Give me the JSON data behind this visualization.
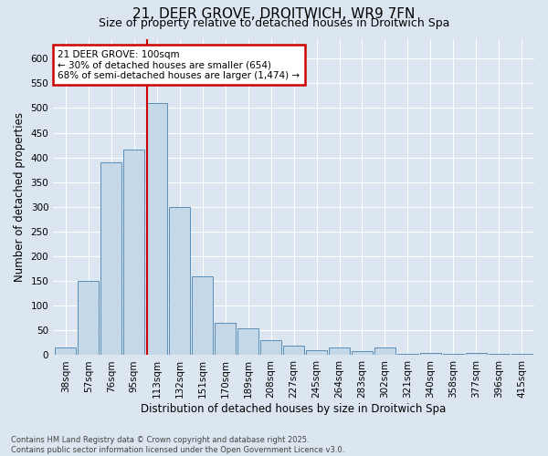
{
  "title_line1": "21, DEER GROVE, DROITWICH, WR9 7FN",
  "title_line2": "Size of property relative to detached houses in Droitwich Spa",
  "xlabel": "Distribution of detached houses by size in Droitwich Spa",
  "ylabel": "Number of detached properties",
  "categories": [
    "38sqm",
    "57sqm",
    "76sqm",
    "95sqm",
    "113sqm",
    "132sqm",
    "151sqm",
    "170sqm",
    "189sqm",
    "208sqm",
    "227sqm",
    "245sqm",
    "264sqm",
    "283sqm",
    "302sqm",
    "321sqm",
    "340sqm",
    "358sqm",
    "377sqm",
    "396sqm",
    "415sqm"
  ],
  "values": [
    15,
    150,
    390,
    415,
    510,
    300,
    160,
    65,
    55,
    30,
    20,
    10,
    15,
    8,
    15,
    2,
    5,
    2,
    5,
    2,
    2
  ],
  "bar_color": "#c5d8e8",
  "bar_edge_color": "#5b8db8",
  "red_line_x": 3.58,
  "annotation_text": "21 DEER GROVE: 100sqm\n← 30% of detached houses are smaller (654)\n68% of semi-detached houses are larger (1,474) →",
  "annotation_box_color": "#cc0000",
  "ylim": [
    0,
    640
  ],
  "yticks": [
    0,
    50,
    100,
    150,
    200,
    250,
    300,
    350,
    400,
    450,
    500,
    550,
    600
  ],
  "background_color": "#dce6f0",
  "plot_bg_color": "#dce6f0",
  "footer_line1": "Contains HM Land Registry data © Crown copyright and database right 2025.",
  "footer_line2": "Contains public sector information licensed under the Open Government Licence v3.0.",
  "grid_color": "#ffffff",
  "title_fontsize": 11,
  "subtitle_fontsize": 9,
  "tick_fontsize": 7.5,
  "label_fontsize": 8.5,
  "annotation_fontsize": 7.5
}
